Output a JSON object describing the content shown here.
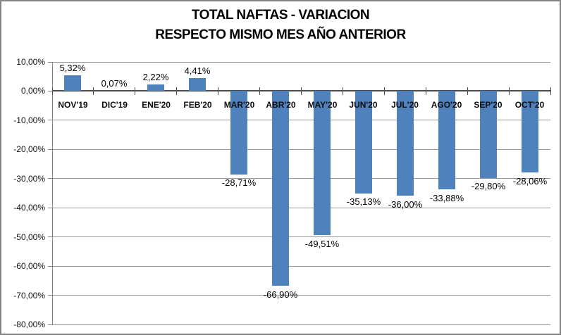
{
  "chart_data": {
    "type": "bar",
    "title": "TOTAL NAFTAS - VARIACION RESPECTO MISMO MES AÑO ANTERIOR",
    "title_lines": [
      "TOTAL NAFTAS - VARIACION",
      "RESPECTO MISMO MES AÑO ANTERIOR"
    ],
    "categories": [
      "NOV'19",
      "DIC'19",
      "ENE'20",
      "FEB'20",
      "MAR'20",
      "ABR'20",
      "MAY'20",
      "JUN'20",
      "JUL'20",
      "AGO'20",
      "SEP'20",
      "OCT'20"
    ],
    "values": [
      5.32,
      0.07,
      2.22,
      4.41,
      -28.71,
      -66.9,
      -49.51,
      -35.13,
      -36.0,
      -33.88,
      -29.8,
      -28.06
    ],
    "value_labels": [
      "5,32%",
      "0,07%",
      "2,22%",
      "4,41%",
      "-28,71%",
      "-66,90%",
      "-49,51%",
      "-35,13%",
      "-36,00%",
      "-33,88%",
      "-29,80%",
      "-28,06%"
    ],
    "xlabel": "",
    "ylabel": "",
    "ylim": [
      -80,
      10
    ],
    "grid": true,
    "legend": "none",
    "y_axis": {
      "tick_labels": [
        "10,00%",
        "0,00%",
        "-10,00%",
        "-20,00%",
        "-30,00%",
        "-40,00%",
        "-50,00%",
        "-60,00%",
        "-70,00%",
        "-80,00%"
      ],
      "tick_values": [
        10,
        0,
        -10,
        -20,
        -30,
        -40,
        -50,
        -60,
        -70,
        -80
      ]
    },
    "colors": {
      "bar": "#4F81BD",
      "gridline": "#969696",
      "axis_line": "#808080",
      "zero_line": "#4D4D4D",
      "text": "#000000",
      "frame_border": "#848484",
      "background": "#FFFFFF"
    }
  }
}
